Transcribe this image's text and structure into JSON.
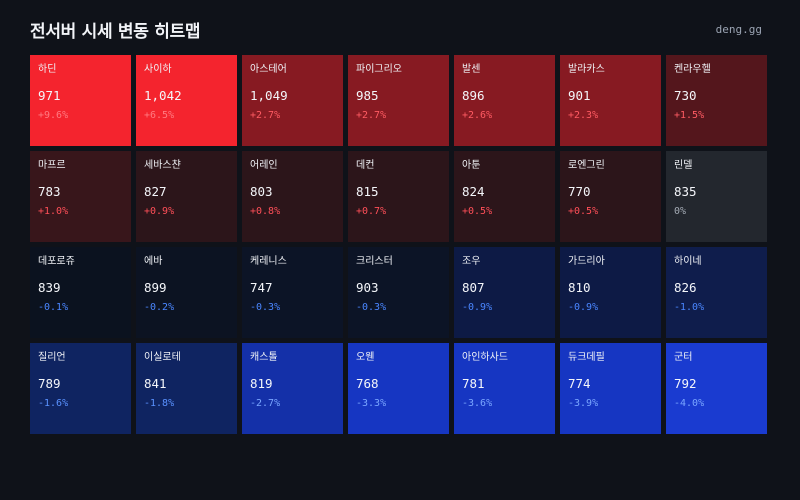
{
  "header": {
    "title": "전서버 시세 변동 히트맵",
    "site": "deng.gg"
  },
  "tiles": [
    {
      "name": "하딘",
      "price": "971",
      "change": "+9.6%",
      "bg": "#f4242e",
      "change_color": "#ff7a80"
    },
    {
      "name": "사이하",
      "price": "1,042",
      "change": "+6.5%",
      "bg": "#f4242e",
      "change_color": "#ff7a80"
    },
    {
      "name": "아스테어",
      "price": "1,049",
      "change": "+2.7%",
      "bg": "#871a22",
      "change_color": "#ff5b63"
    },
    {
      "name": "파이그리오",
      "price": "985",
      "change": "+2.7%",
      "bg": "#871a22",
      "change_color": "#ff5b63"
    },
    {
      "name": "발센",
      "price": "896",
      "change": "+2.6%",
      "bg": "#871a22",
      "change_color": "#ff5b63"
    },
    {
      "name": "발라카스",
      "price": "901",
      "change": "+2.3%",
      "bg": "#871a22",
      "change_color": "#ff5b63"
    },
    {
      "name": "켄라우헬",
      "price": "730",
      "change": "+1.5%",
      "bg": "#54161c",
      "change_color": "#ff5b63"
    },
    {
      "name": "마프르",
      "price": "783",
      "change": "+1.0%",
      "bg": "#38161b",
      "change_color": "#ff4f58"
    },
    {
      "name": "세바스챤",
      "price": "827",
      "change": "+0.9%",
      "bg": "#2c151a",
      "change_color": "#ff4f58"
    },
    {
      "name": "어레인",
      "price": "803",
      "change": "+0.8%",
      "bg": "#2c151a",
      "change_color": "#ff4f58"
    },
    {
      "name": "데컨",
      "price": "815",
      "change": "+0.7%",
      "bg": "#2c151a",
      "change_color": "#ff4f58"
    },
    {
      "name": "아툰",
      "price": "824",
      "change": "+0.5%",
      "bg": "#2c151a",
      "change_color": "#ff4f58"
    },
    {
      "name": "로엔그린",
      "price": "770",
      "change": "+0.5%",
      "bg": "#2c151a",
      "change_color": "#ff4f58"
    },
    {
      "name": "린델",
      "price": "835",
      "change": "0%",
      "bg": "#23272e",
      "change_color": "#a4abb5"
    },
    {
      "name": "데포로쥬",
      "price": "839",
      "change": "-0.1%",
      "bg": "#0b121f",
      "change_color": "#4a86ff"
    },
    {
      "name": "에바",
      "price": "899",
      "change": "-0.2%",
      "bg": "#0c1322",
      "change_color": "#4a86ff"
    },
    {
      "name": "케레니스",
      "price": "747",
      "change": "-0.3%",
      "bg": "#0c1426",
      "change_color": "#4a86ff"
    },
    {
      "name": "크리스터",
      "price": "903",
      "change": "-0.3%",
      "bg": "#0c1426",
      "change_color": "#4a86ff"
    },
    {
      "name": "조우",
      "price": "807",
      "change": "-0.9%",
      "bg": "#0d1a45",
      "change_color": "#4a86ff"
    },
    {
      "name": "가드리아",
      "price": "810",
      "change": "-0.9%",
      "bg": "#0d1a45",
      "change_color": "#4a86ff"
    },
    {
      "name": "하이네",
      "price": "826",
      "change": "-1.0%",
      "bg": "#0f1d4c",
      "change_color": "#4a86ff"
    },
    {
      "name": "질리언",
      "price": "789",
      "change": "-1.6%",
      "bg": "#0f2461",
      "change_color": "#5a92ff"
    },
    {
      "name": "이실로테",
      "price": "841",
      "change": "-1.8%",
      "bg": "#0f2461",
      "change_color": "#5a92ff"
    },
    {
      "name": "캐스톨",
      "price": "819",
      "change": "-2.7%",
      "bg": "#1430a8",
      "change_color": "#7aa6ff"
    },
    {
      "name": "오웬",
      "price": "768",
      "change": "-3.3%",
      "bg": "#1636c2",
      "change_color": "#7aa6ff"
    },
    {
      "name": "아인하사드",
      "price": "781",
      "change": "-3.6%",
      "bg": "#1636c2",
      "change_color": "#7aa6ff"
    },
    {
      "name": "듀크데필",
      "price": "774",
      "change": "-3.9%",
      "bg": "#1636c2",
      "change_color": "#7aa6ff"
    },
    {
      "name": "군터",
      "price": "792",
      "change": "-4.0%",
      "bg": "#1a3bd0",
      "change_color": "#7aa6ff"
    }
  ]
}
